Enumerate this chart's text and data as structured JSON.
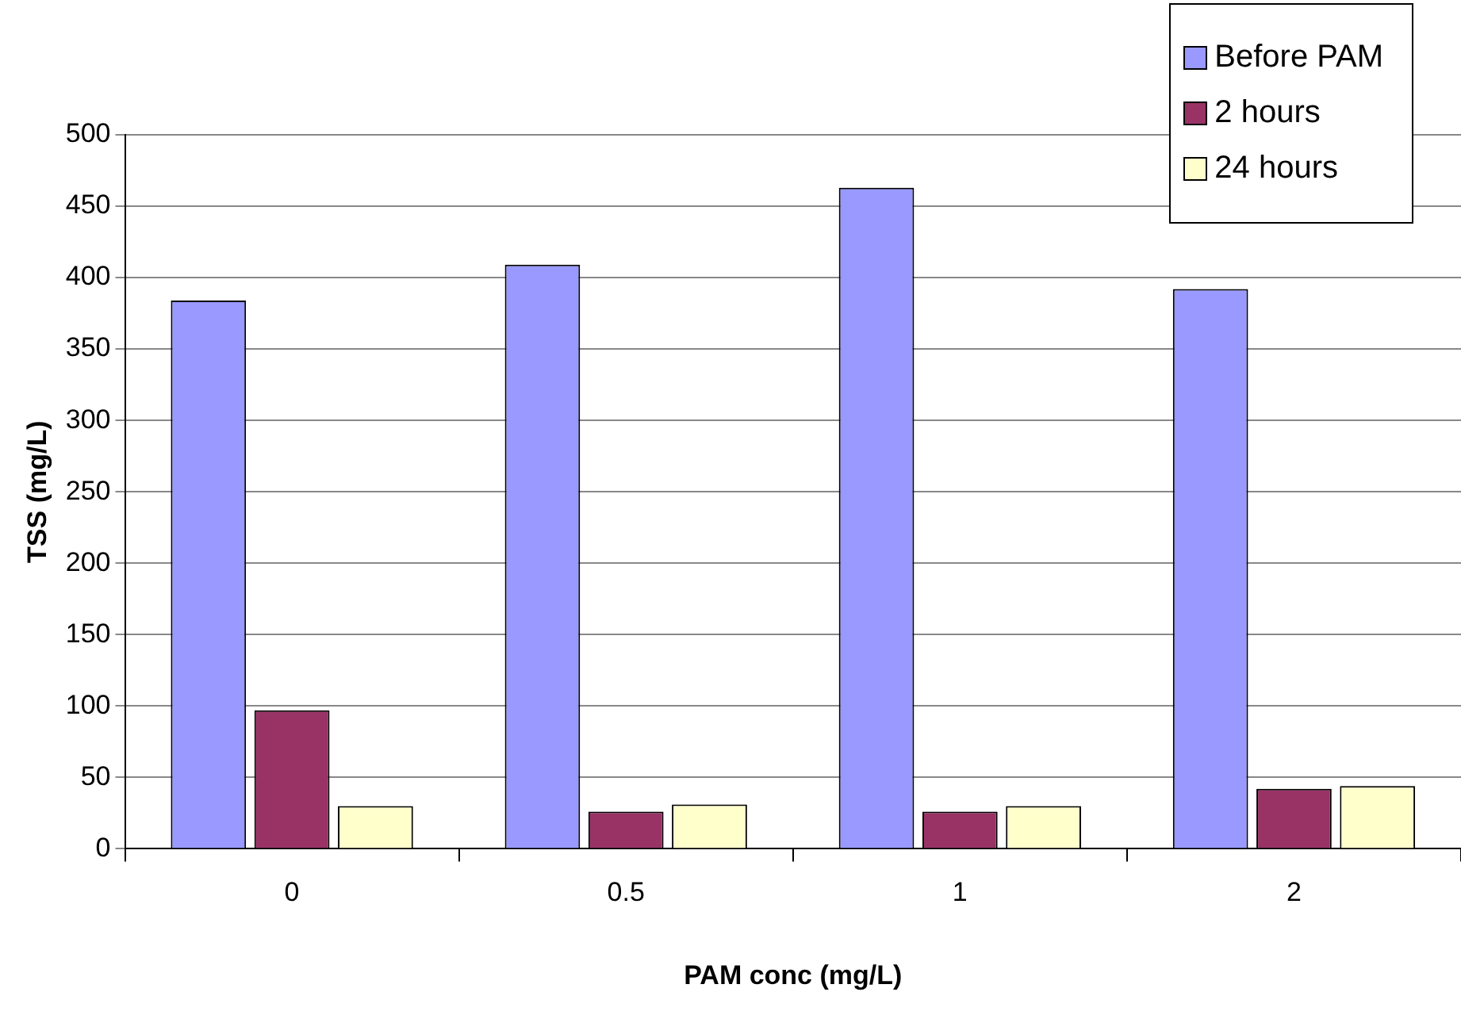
{
  "chart_data": {
    "type": "bar",
    "xlabel": "PAM conc (mg/L)",
    "ylabel": "TSS (mg/L)",
    "categories": [
      "0",
      "0.5",
      "1",
      "2"
    ],
    "series": [
      {
        "name": "Before PAM",
        "color": "#9999ff",
        "values": [
          384,
          409,
          463,
          392
        ]
      },
      {
        "name": "2 hours",
        "color": "#993366",
        "values": [
          97,
          26,
          26,
          42
        ]
      },
      {
        "name": "24 hours",
        "color": "#ffffcc",
        "values": [
          30,
          31,
          30,
          44
        ]
      }
    ],
    "ylim": [
      0,
      500
    ],
    "yticks": [
      0,
      50,
      100,
      150,
      200,
      250,
      300,
      350,
      400,
      450,
      500
    ],
    "grid": "y",
    "legend": "top right"
  }
}
